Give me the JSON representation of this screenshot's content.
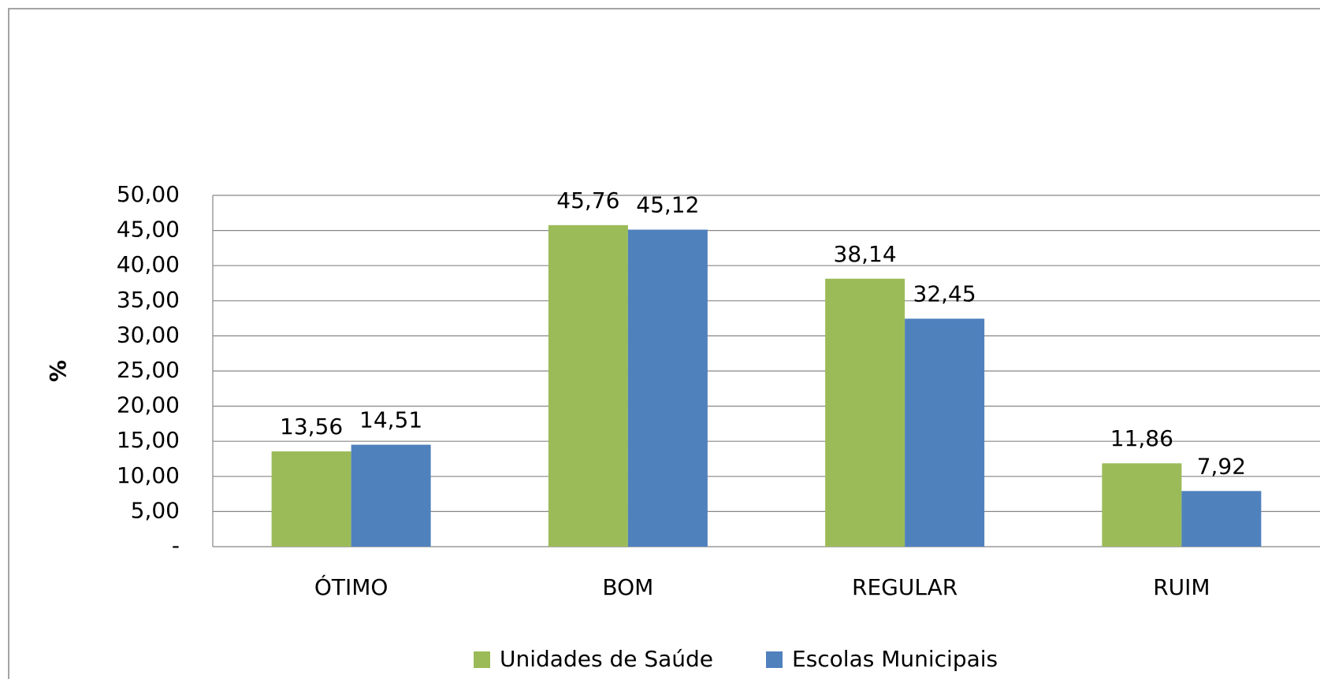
{
  "chart_data": {
    "type": "bar",
    "categories": [
      "ÓTIMO",
      "BOM",
      "REGULAR",
      "RUIM"
    ],
    "series": [
      {
        "name": "Unidades de Saúde",
        "color": "#9bbb59",
        "values": [
          13.56,
          45.76,
          38.14,
          11.86
        ],
        "value_labels": [
          "13,56",
          "45,76",
          "38,14",
          "11,86"
        ]
      },
      {
        "name": "Escolas Municipais",
        "color": "#4f81bd",
        "values": [
          14.51,
          45.12,
          32.45,
          7.92
        ],
        "value_labels": [
          "14,51",
          "45,12",
          "32,45",
          "7,92"
        ]
      }
    ],
    "ylabel": "%",
    "ylim": [
      0,
      50
    ],
    "yticks": [
      {
        "value": 0,
        "label": "-"
      },
      {
        "value": 5,
        "label": "5,00"
      },
      {
        "value": 10,
        "label": "10,00"
      },
      {
        "value": 15,
        "label": "15,00"
      },
      {
        "value": 20,
        "label": "20,00"
      },
      {
        "value": 25,
        "label": "25,00"
      },
      {
        "value": 30,
        "label": "30,00"
      },
      {
        "value": 35,
        "label": "35,00"
      },
      {
        "value": 40,
        "label": "40,00"
      },
      {
        "value": 45,
        "label": "45,00"
      },
      {
        "value": 50,
        "label": "50,00"
      }
    ],
    "grid": true,
    "legend": "bottom"
  }
}
